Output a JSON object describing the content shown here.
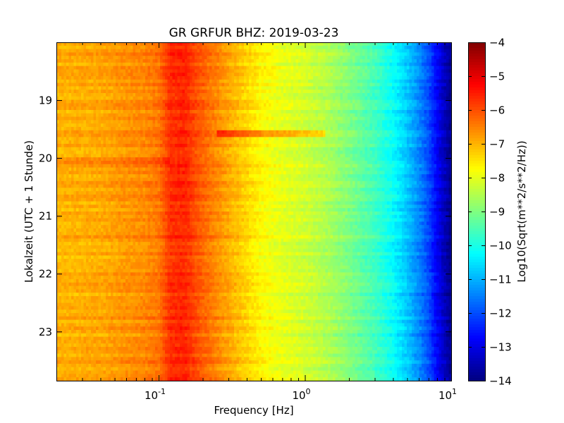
{
  "chart_data": {
    "type": "heatmap",
    "title": "GR GRFUR BHZ: 2019-03-23",
    "xlabel": "Frequency [Hz]",
    "ylabel": "Lokalzeit (UTC + 1 Stunde)",
    "x_scale": "log",
    "xlim": [
      0.02,
      10
    ],
    "x_ticks": [
      {
        "value": 0.1,
        "base": "10",
        "exp": "-1"
      },
      {
        "value": 1,
        "base": "10",
        "exp": "0"
      },
      {
        "value": 10,
        "base": "10",
        "exp": "1"
      }
    ],
    "ylim": [
      18.0,
      23.85
    ],
    "y_ticks": [
      {
        "value": 19,
        "label": "19"
      },
      {
        "value": 20,
        "label": "20"
      },
      {
        "value": 21,
        "label": "21"
      },
      {
        "value": 22,
        "label": "22"
      },
      {
        "value": 23,
        "label": "23"
      }
    ],
    "colorbar": {
      "label": "Log10(Sqrt(m**2/s**2/Hz))",
      "range": [
        -14,
        -4
      ],
      "colormap": "jet",
      "ticks": [
        {
          "value": -4,
          "label": "−4"
        },
        {
          "value": -5,
          "label": "−5"
        },
        {
          "value": -6,
          "label": "−6"
        },
        {
          "value": -7,
          "label": "−7"
        },
        {
          "value": -8,
          "label": "−8"
        },
        {
          "value": -9,
          "label": "−9"
        },
        {
          "value": -10,
          "label": "−10"
        },
        {
          "value": -11,
          "label": "−11"
        },
        {
          "value": -12,
          "label": "−12"
        },
        {
          "value": -13,
          "label": "−13"
        },
        {
          "value": -14,
          "label": "−14"
        }
      ]
    },
    "profile": {
      "freq": [
        0.02,
        0.04,
        0.06,
        0.08,
        0.1,
        0.12,
        0.15,
        0.2,
        0.3,
        0.5,
        0.7,
        1.0,
        1.5,
        2.0,
        3.0,
        4.0,
        5.0,
        6.0,
        7.0,
        8.0,
        9.0,
        10.0
      ],
      "level": [
        -7.0,
        -6.9,
        -6.7,
        -6.6,
        -6.4,
        -5.7,
        -5.6,
        -6.2,
        -6.9,
        -7.7,
        -8.0,
        -8.2,
        -8.6,
        -9.0,
        -9.6,
        -10.2,
        -10.8,
        -11.4,
        -12.0,
        -12.8,
        -13.4,
        -13.9
      ]
    },
    "time_rows": 100,
    "freq_columns": 160
  }
}
